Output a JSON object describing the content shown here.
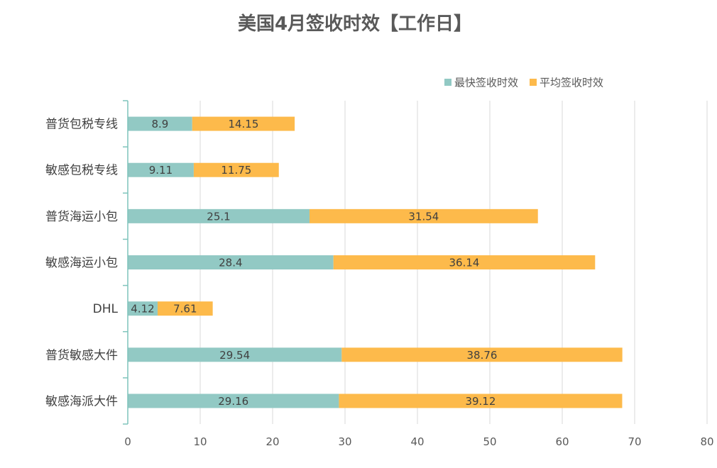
{
  "chart_data": {
    "type": "bar",
    "orientation": "horizontal",
    "stacked": true,
    "title": "美国4月签收时效【工作日】",
    "xlabel": "",
    "ylabel": "",
    "xlim": [
      0,
      80
    ],
    "xticks": [
      0,
      10,
      20,
      30,
      40,
      50,
      60,
      70,
      80
    ],
    "grid": true,
    "legend_position": "top-right",
    "categories": [
      "普货包税专线",
      "敏感包税专线",
      "普货海运小包",
      "敏感海运小包",
      "DHL",
      "普货敏感大件",
      "敏感海派大件"
    ],
    "series": [
      {
        "name": "最快签收时效",
        "color": "#92C9C4",
        "values": [
          8.9,
          9.11,
          25.1,
          28.4,
          4.12,
          29.54,
          29.16
        ],
        "labels": [
          "8.9",
          "9.11",
          "25.1",
          "28.4",
          "4.12",
          "29.54",
          "29.16"
        ]
      },
      {
        "name": "平均签收时效",
        "color": "#FDBA4B",
        "values": [
          14.15,
          11.75,
          31.54,
          36.14,
          7.61,
          38.76,
          39.12
        ],
        "labels": [
          "14.15",
          "11.75",
          "31.54",
          "36.14",
          "7.61",
          "38.76",
          "39.12"
        ]
      }
    ],
    "colors": {
      "axis": "#7FC4BC",
      "grid": "#D9D9D9"
    }
  }
}
